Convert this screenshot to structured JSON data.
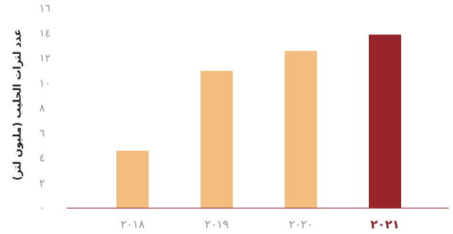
{
  "chart_data": {
    "type": "bar",
    "ylabel": "عدد لترات الحليب (مليون لتر)",
    "categories": [
      "٢٠١٨",
      "٢٠١٩",
      "٢٠٢٠",
      "٢٠٢١"
    ],
    "values": [
      4.6,
      11.0,
      12.6,
      13.9
    ],
    "highlight_index": 3,
    "ylim": [
      0,
      16
    ],
    "yticks": [
      0,
      2,
      4,
      6,
      8,
      10,
      12,
      14,
      16
    ],
    "ytick_labels": [
      "٠",
      "٢",
      "٤",
      "٦",
      "٨",
      "١٠",
      "١٢",
      "١٤",
      "١٦"
    ],
    "grid": false,
    "colors": {
      "bar": "#f2bd7e",
      "highlight": "#962429",
      "axis": "#9b3b3b"
    }
  }
}
